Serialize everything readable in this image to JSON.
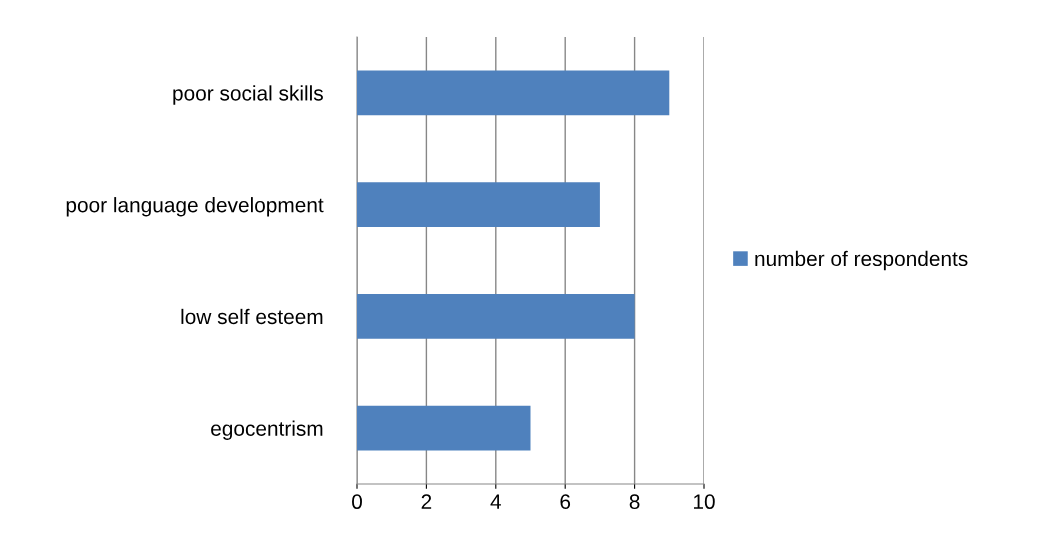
{
  "chart_data": {
    "type": "bar",
    "orientation": "horizontal",
    "categories": [
      "poor social skills",
      "poor language development",
      "low self esteem",
      "egocentrism"
    ],
    "series": [
      {
        "name": "number of respondents",
        "color": "#4f81bd",
        "values": [
          9,
          7,
          8,
          5
        ]
      }
    ],
    "xlim": [
      0,
      10
    ],
    "xticks": [
      0,
      2,
      4,
      6,
      8,
      10
    ],
    "grid": "x",
    "legend": "right"
  }
}
